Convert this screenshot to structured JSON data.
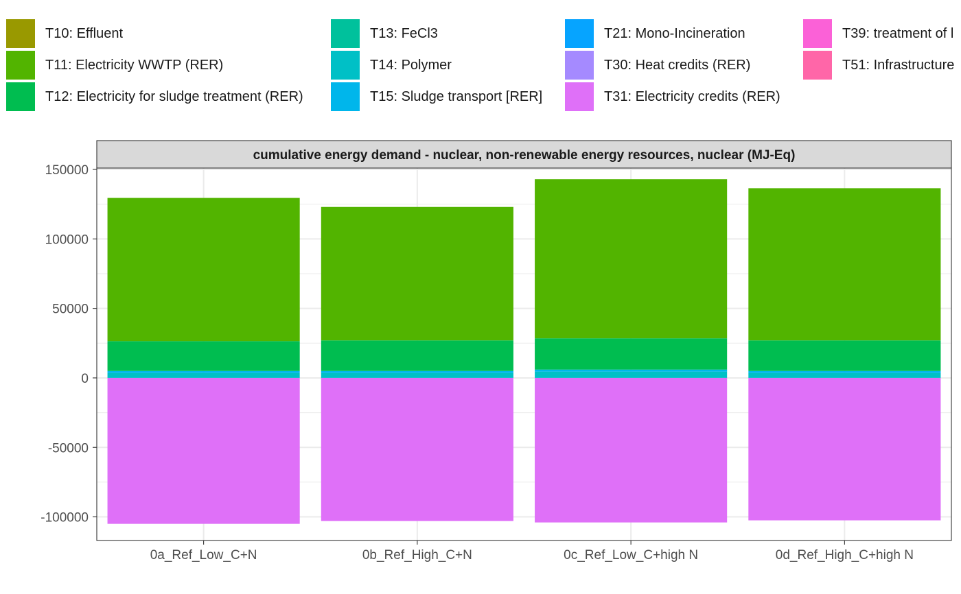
{
  "legend": {
    "items": [
      {
        "label": "T10: Effluent",
        "color": "#999900"
      },
      {
        "label": "T11: Electricity WWTP (RER)",
        "color": "#52b400"
      },
      {
        "label": "T12: Electricity for sludge treatment (RER)",
        "color": "#00bd50"
      },
      {
        "label": "T13: FeCl3",
        "color": "#00c19c"
      },
      {
        "label": "T14: Polymer",
        "color": "#00c0c6"
      },
      {
        "label": "T15: Sludge transport [RER]",
        "color": "#00b6eb"
      },
      {
        "label": "T21: Mono-Incineration",
        "color": "#06a4ff"
      },
      {
        "label": "T30: Heat credits (RER)",
        "color": "#a58aff"
      },
      {
        "label": "T31: Electricity credits (RER)",
        "color": "#df70f8"
      },
      {
        "label": "T39: treatment of l",
        "color": "#fb61d7"
      },
      {
        "label": "T51: Infrastructure",
        "color": "#ff66a8"
      }
    ]
  },
  "chart_data": {
    "type": "bar",
    "stacked": true,
    "title": "cumulative energy demand - nuclear, non-renewable energy resources, nuclear (MJ-Eq)",
    "xlabel": "",
    "ylabel": "",
    "categories": [
      "0a_Ref_Low_C+N",
      "0b_Ref_High_C+N",
      "0c_Ref_Low_C+high N",
      "0d_Ref_High_C+high N"
    ],
    "yticks": [
      -100000,
      -50000,
      0,
      50000,
      100000,
      150000
    ],
    "ylim": [
      -117000,
      151000
    ],
    "grid": true,
    "legend_position": "top",
    "series": [
      {
        "name": "T14: Polymer",
        "color": "#00c0c6",
        "values": [
          3500,
          3500,
          4500,
          3500
        ]
      },
      {
        "name": "T15: Sludge transport [RER]",
        "color": "#00b6eb",
        "values": [
          1500,
          1500,
          1500,
          1500
        ]
      },
      {
        "name": "T12: Electricity for sludge treatment (RER)",
        "color": "#00bd50",
        "values": [
          21500,
          22000,
          22500,
          22000
        ]
      },
      {
        "name": "T11: Electricity WWTP (RER)",
        "color": "#52b400",
        "values": [
          103000,
          96000,
          114500,
          109500
        ]
      },
      {
        "name": "T31: Electricity credits (RER)",
        "color": "#df70f8",
        "values": [
          -105000,
          -103000,
          -104000,
          -102500
        ]
      }
    ]
  }
}
